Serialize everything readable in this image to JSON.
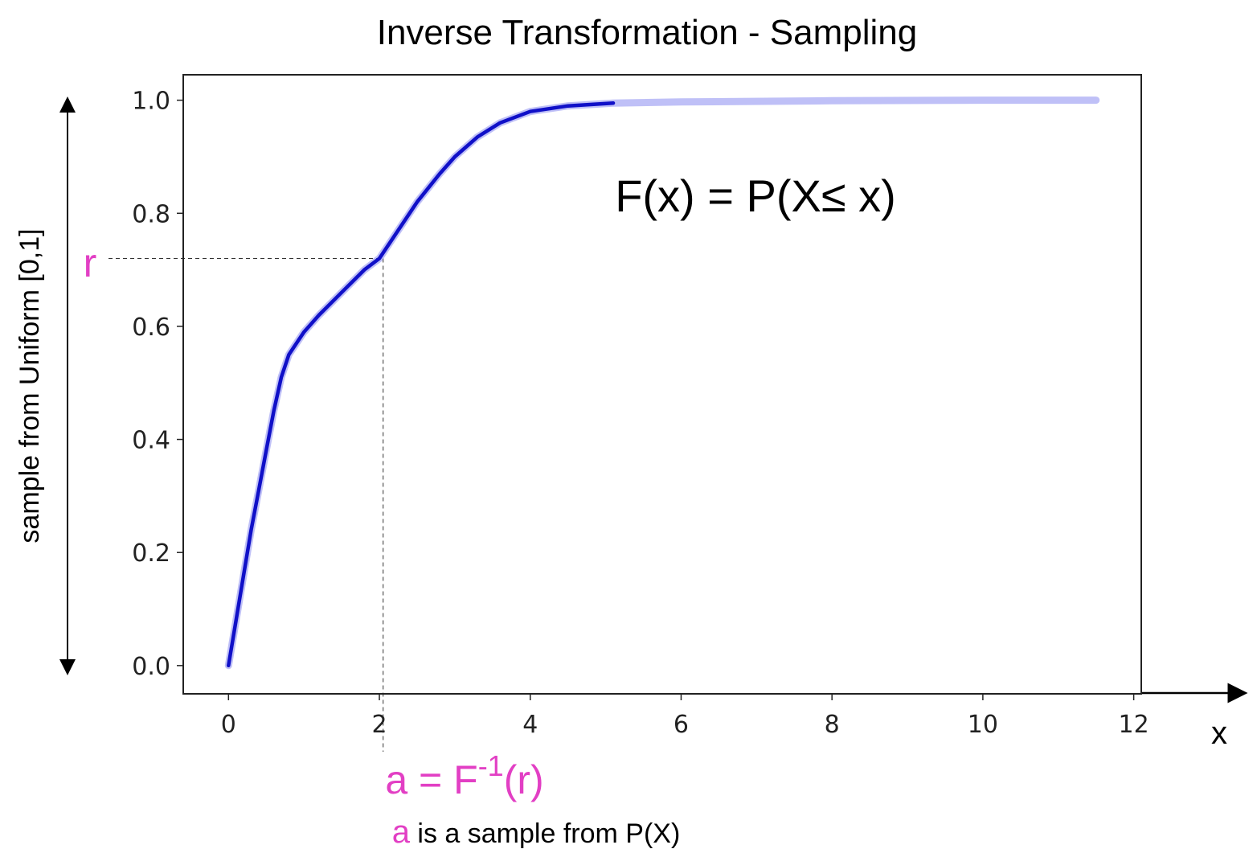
{
  "chart_data": {
    "type": "line",
    "title": "Inverse Transformation - Sampling",
    "xlabel": "x",
    "ylabel": "sample from Uniform [0,1]",
    "xlim": [
      -0.6,
      12.1
    ],
    "ylim": [
      -0.05,
      1.045
    ],
    "x_ticks": [
      "0",
      "2",
      "4",
      "6",
      "8",
      "10",
      "12"
    ],
    "y_ticks": [
      "0.0",
      "0.2",
      "0.4",
      "0.6",
      "0.8",
      "1.0"
    ],
    "grid": false,
    "colors": {
      "curve": "#1010c8",
      "curve_faded": "#8a8cf0",
      "annotation": "#e23fc4"
    },
    "series": [
      {
        "points": [
          [
            0.0,
            0.0
          ],
          [
            0.1,
            0.08
          ],
          [
            0.2,
            0.16
          ],
          [
            0.3,
            0.24
          ],
          [
            0.4,
            0.31
          ],
          [
            0.5,
            0.38
          ],
          [
            0.6,
            0.45
          ],
          [
            0.7,
            0.51
          ],
          [
            0.8,
            0.55
          ],
          [
            1.0,
            0.59
          ],
          [
            1.2,
            0.62
          ],
          [
            1.5,
            0.66
          ],
          [
            1.8,
            0.7
          ],
          [
            2.0,
            0.72
          ],
          [
            2.2,
            0.76
          ],
          [
            2.5,
            0.82
          ],
          [
            2.8,
            0.87
          ],
          [
            3.0,
            0.9
          ],
          [
            3.3,
            0.935
          ],
          [
            3.6,
            0.96
          ],
          [
            4.0,
            0.98
          ],
          [
            4.5,
            0.99
          ],
          [
            5.1,
            0.995
          ],
          [
            6.0,
            0.997
          ],
          [
            8.0,
            0.999
          ],
          [
            10.0,
            1.0
          ],
          [
            11.5,
            1.0
          ]
        ],
        "solid_until_x": 5.1
      }
    ],
    "annotations": {
      "formula": "F(x) = P(X≤ x)",
      "r_label": "r",
      "r_value": 0.72,
      "a_value": 2.05,
      "a_equation": {
        "lhs": "a = F",
        "superscript": "-1",
        "rhs": "(r)"
      },
      "caption": {
        "symbol": "a",
        "text": " is a sample from P(X)"
      }
    }
  }
}
